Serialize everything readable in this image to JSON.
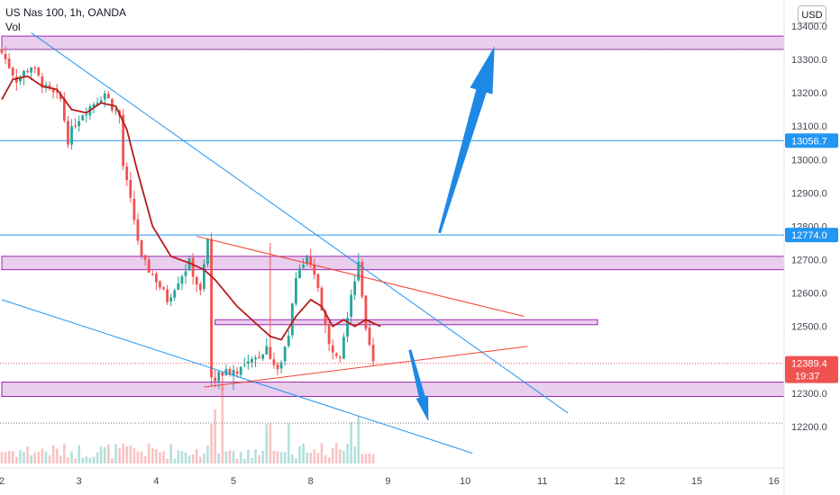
{
  "header": {
    "title": "US Nas 100, 1h, OANDA",
    "indicator": "Vol",
    "currency_button": "USD"
  },
  "colors": {
    "up": "#26a69a",
    "down": "#ef5350",
    "ma": "#b71c1c",
    "zone_fill": "#e1bee7",
    "zone_border": "#9c27b0",
    "hline": "#2196f3",
    "trend_blue": "#2196f3",
    "trend_red": "#f44336",
    "arrow": "#1e88e5",
    "badge_blue": "#2196f3",
    "badge_red": "#ef5350"
  },
  "chart_data": {
    "type": "candlestick",
    "title": "US Nas 100, 1h, OANDA",
    "y_axis": {
      "min": 12120,
      "max": 13420,
      "ticks": [
        "13400.0",
        "13300.0",
        "13200.0",
        "13100.0",
        "13000.0",
        "12900.0",
        "12800.0",
        "12700.0",
        "12600.0",
        "12500.0",
        "12300.0",
        "12200.0"
      ]
    },
    "x_axis": {
      "labels": [
        {
          "label": "2",
          "bar": 0
        },
        {
          "label": "3",
          "bar": 21
        },
        {
          "label": "4",
          "bar": 42
        },
        {
          "label": "5",
          "bar": 63
        },
        {
          "label": "8",
          "bar": 84
        },
        {
          "label": "9",
          "bar": 105
        },
        {
          "label": "10",
          "bar": 126
        },
        {
          "label": "11",
          "bar": 147
        },
        {
          "label": "12",
          "bar": 168
        },
        {
          "label": "15",
          "bar": 189
        },
        {
          "label": "16",
          "bar": 210
        }
      ]
    },
    "price_badges": [
      {
        "label": "13056.7",
        "value": 13056.7,
        "color": "blue"
      },
      {
        "label": "12774.0",
        "value": 12774.0,
        "color": "blue"
      },
      {
        "label": "12389.4",
        "value": 12389.4,
        "color": "red",
        "countdown": "19:37"
      }
    ],
    "horizontal_lines": [
      13056.7,
      12774.0
    ],
    "dotted_lines": [
      13330,
      12389.4,
      12210
    ],
    "zones": [
      {
        "from_bar": 0,
        "to_bar": 220,
        "low": 13330,
        "high": 13370
      },
      {
        "from_bar": 0,
        "to_bar": 220,
        "low": 12670,
        "high": 12710
      },
      {
        "from_bar": 58,
        "to_bar": 162,
        "low": 12505,
        "high": 12520
      },
      {
        "from_bar": 0,
        "to_bar": 220,
        "low": 12290,
        "high": 12333
      }
    ],
    "trend_lines": [
      {
        "color": "blue",
        "from": [
          8,
          13380
        ],
        "to": [
          154,
          12240
        ]
      },
      {
        "color": "blue",
        "from": [
          0,
          12580
        ],
        "to": [
          128,
          12120
        ]
      },
      {
        "color": "red",
        "from": [
          53,
          12770
        ],
        "to": [
          142,
          12530
        ]
      },
      {
        "color": "red",
        "from": [
          55,
          12318
        ],
        "to": [
          143,
          12440
        ]
      }
    ],
    "arrows": [
      {
        "direction": "up",
        "from": [
          119,
          12780
        ],
        "to": [
          134,
          13340
        ]
      },
      {
        "direction": "down",
        "from": [
          111,
          12430
        ],
        "to": [
          116,
          12215
        ]
      }
    ],
    "anchors": [
      [
        0,
        13320
      ],
      [
        4,
        13240
      ],
      [
        8,
        13280
      ],
      [
        12,
        13210
      ],
      [
        16,
        13180
      ],
      [
        18,
        13060
      ],
      [
        20,
        13110
      ],
      [
        22,
        13140
      ],
      [
        25,
        13170
      ],
      [
        28,
        13200
      ],
      [
        30,
        13160
      ],
      [
        32,
        13130
      ],
      [
        33,
        12980
      ],
      [
        36,
        12820
      ],
      [
        38,
        12700
      ],
      [
        42,
        12640
      ],
      [
        45,
        12580
      ],
      [
        48,
        12640
      ],
      [
        51,
        12690
      ],
      [
        54,
        12600
      ],
      [
        56,
        12760
      ],
      [
        57,
        12340
      ],
      [
        60,
        12360
      ],
      [
        64,
        12370
      ],
      [
        68,
        12390
      ],
      [
        72,
        12440
      ],
      [
        75,
        12360
      ],
      [
        78,
        12480
      ],
      [
        80,
        12660
      ],
      [
        83,
        12700
      ],
      [
        86,
        12620
      ],
      [
        89,
        12440
      ],
      [
        92,
        12420
      ],
      [
        95,
        12600
      ],
      [
        97,
        12680
      ],
      [
        99,
        12480
      ],
      [
        101,
        12389.4
      ]
    ],
    "ma_anchors": [
      [
        0,
        13180
      ],
      [
        3,
        13240
      ],
      [
        7,
        13250
      ],
      [
        11,
        13220
      ],
      [
        15,
        13210
      ],
      [
        19,
        13150
      ],
      [
        23,
        13140
      ],
      [
        27,
        13170
      ],
      [
        31,
        13160
      ],
      [
        34,
        13090
      ],
      [
        37,
        12960
      ],
      [
        41,
        12800
      ],
      [
        46,
        12710
      ],
      [
        51,
        12690
      ],
      [
        55,
        12670
      ],
      [
        58,
        12640
      ],
      [
        61,
        12600
      ],
      [
        64,
        12560
      ],
      [
        67,
        12530
      ],
      [
        70,
        12500
      ],
      [
        73,
        12470
      ],
      [
        76,
        12460
      ],
      [
        80,
        12530
      ],
      [
        84,
        12580
      ],
      [
        87,
        12560
      ],
      [
        90,
        12500
      ],
      [
        93,
        12520
      ],
      [
        96,
        12500
      ],
      [
        99,
        12520
      ],
      [
        103,
        12500
      ]
    ],
    "last_bar": 101
  }
}
